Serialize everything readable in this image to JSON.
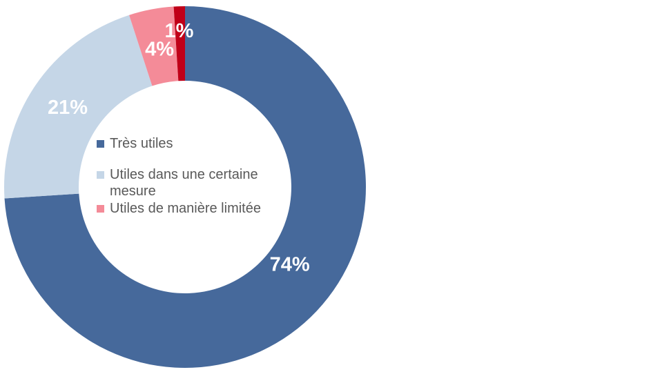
{
  "chart_data": {
    "type": "pie",
    "subtype": "donut",
    "title": "",
    "categories": [
      "Très utiles",
      "Utiles dans une certaine mesure",
      "Utiles de manière limitée",
      ""
    ],
    "values": [
      74,
      21,
      4,
      1
    ],
    "data_labels": [
      "74%",
      "21%",
      "4%",
      "1%"
    ],
    "colors": [
      "#46699B",
      "#C5D6E7",
      "#F48B98",
      "#C00018"
    ],
    "start_angle_deg": 0,
    "direction": "clockwise",
    "hole_ratio": 0.59,
    "data_label_color": "#FFFFFF",
    "background_color": "#FFFFFF",
    "legend": {
      "position": "center-of-hole",
      "text_color": "#595959",
      "items": [
        {
          "label": "Très utiles",
          "color": "#46699B"
        },
        {
          "label": "Utiles dans une certaine mesure",
          "color": "#C5D6E7"
        },
        {
          "label": "Utiles de manière limitée",
          "color": "#F48B98"
        }
      ]
    }
  }
}
